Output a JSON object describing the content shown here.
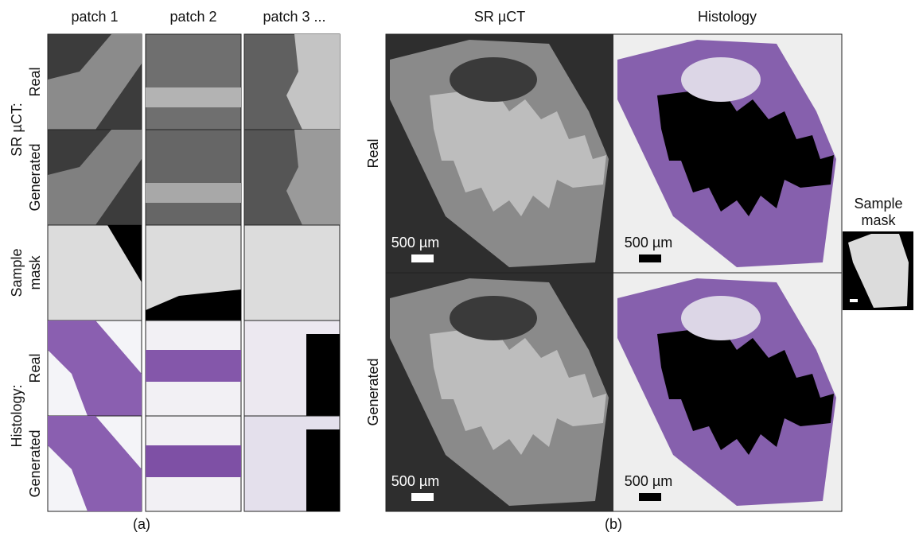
{
  "panel_a": {
    "columns": [
      "patch 1",
      "patch 2",
      "patch 3 ..."
    ],
    "row_groups": [
      {
        "group": "SR µCT:",
        "rows": [
          "Real",
          "Generated"
        ]
      },
      {
        "group": "Sample",
        "rows": [
          "mask"
        ]
      },
      {
        "group": "Histology:",
        "rows": [
          "Real",
          "Generated"
        ]
      }
    ],
    "caption": "(a)"
  },
  "panel_b": {
    "columns": [
      "SR µCT",
      "Histology"
    ],
    "rows": [
      "Real",
      "Generated"
    ],
    "scale_bars": [
      "500 µm",
      "500 µm",
      "500 µm",
      "500 µm"
    ],
    "mask_title": [
      "Sample",
      "mask"
    ],
    "caption": "(b)"
  }
}
